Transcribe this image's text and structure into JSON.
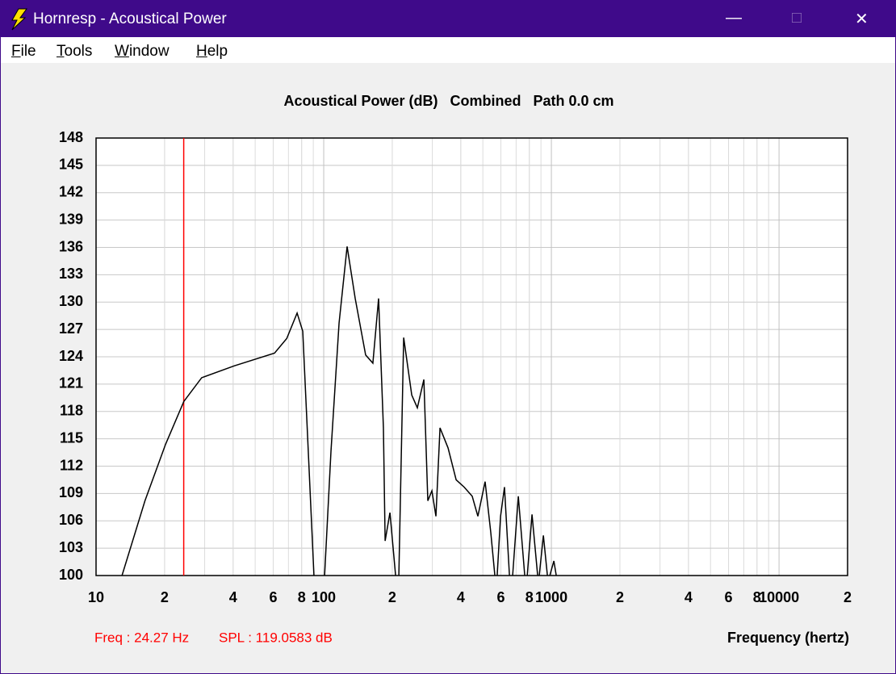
{
  "window_title": "Hornresp - Acoustical Power",
  "menu": [
    "File",
    "Tools",
    "Window",
    "Help"
  ],
  "chart_data": {
    "type": "line",
    "title": "Acoustical Power (dB)   Combined   Path 0.0 cm",
    "xlabel": "Frequency (hertz)",
    "xscale": "log",
    "grid": true,
    "minor_grid": true,
    "xlim": [
      10,
      20000
    ],
    "ylim": [
      100,
      148
    ],
    "xticks": [
      10,
      {
        "value": 20,
        "label": "2"
      },
      {
        "value": 40,
        "label": "4"
      },
      {
        "value": 60,
        "label": "6"
      },
      {
        "value": 80,
        "label": "8"
      },
      100,
      {
        "value": 200,
        "label": "2"
      },
      {
        "value": 400,
        "label": "4"
      },
      {
        "value": 600,
        "label": "6"
      },
      {
        "value": 800,
        "label": "8"
      },
      1000,
      {
        "value": 2000,
        "label": "2"
      },
      {
        "value": 4000,
        "label": "4"
      },
      {
        "value": 6000,
        "label": "6"
      },
      {
        "value": 8000,
        "label": "8"
      },
      10000,
      {
        "value": 20000,
        "label": "2"
      }
    ],
    "yticks": [
      100,
      103,
      106,
      109,
      112,
      115,
      118,
      121,
      124,
      127,
      130,
      133,
      136,
      139,
      142,
      145,
      148
    ],
    "x": [
      13,
      16.4,
      20.2,
      24.3,
      29.1,
      40.4,
      60.8,
      68.8,
      76.4,
      80.9,
      84.3,
      90.6,
      null,
      100.9,
      107.6,
      116.8,
      126.7,
      137.5,
      152.8,
      164.4,
      174.2,
      182.9,
      186.1,
      195.4,
      206.9,
      null,
      213.8,
      224.5,
      243.6,
      257.8,
      275.4,
      286.6,
      298.7,
      311.1,
      324.2,
      351.7,
      381.7,
      414,
      449,
      475.5,
      511.6,
      541.9,
      564.6,
      null,
      578,
      598.1,
      622.3,
      654.4,
      null,
      675.9,
      715.8,
      763.8,
      null,
      783.4,
      822.2,
      870.4,
      null,
      884.6,
      922.3,
      960.6,
      null,
      984.3,
      1025.6,
      1050.6
    ],
    "series": [
      {
        "name": "Combined",
        "color": "#000000",
        "values": [
          100,
          108.2,
          114.4,
          119.1,
          121.7,
          123,
          124.4,
          126,
          128.8,
          126.8,
          117.1,
          100,
          null,
          100,
          113.6,
          127.7,
          136.1,
          130.4,
          124.2,
          123.3,
          130.4,
          116.2,
          103.8,
          106.9,
          100,
          null,
          100,
          126.1,
          119.8,
          118.4,
          121.5,
          108.2,
          109.3,
          106.5,
          116.2,
          114,
          110.5,
          109.7,
          108.7,
          106.5,
          110.3,
          104.7,
          100,
          null,
          100,
          106.5,
          109.7,
          100,
          null,
          100,
          108.7,
          100,
          null,
          100,
          106.7,
          100,
          null,
          100,
          104.4,
          100,
          null,
          100,
          101.6,
          100
        ]
      }
    ],
    "cursor": {
      "x": 24.27,
      "color": "#ff0000",
      "label": "Freq : 24.27 Hz"
    },
    "readout": "SPL : 119.0583 dB"
  }
}
